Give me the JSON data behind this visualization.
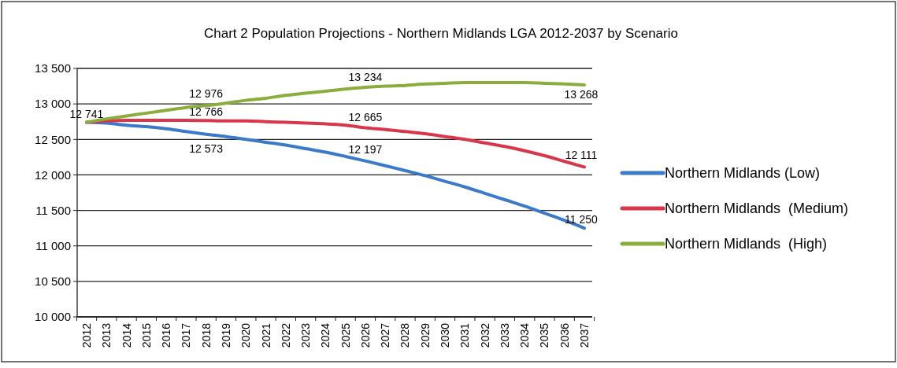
{
  "chart_data": {
    "type": "line",
    "title": "Chart 2 Population Projections - Northern Midlands LGA  2012-2037 by Scenario",
    "categories": [
      "2012",
      "2013",
      "2014",
      "2015",
      "2016",
      "2017",
      "2018",
      "2019",
      "2020",
      "2021",
      "2022",
      "2023",
      "2024",
      "2025",
      "2026",
      "2027",
      "2028",
      "2029",
      "2030",
      "2031",
      "2032",
      "2033",
      "2034",
      "2035",
      "2036",
      "2037"
    ],
    "series": [
      {
        "name": "Northern Midlands (Low)",
        "color": "#3a7ac8",
        "values": [
          12741,
          12730,
          12700,
          12680,
          12650,
          12610,
          12573,
          12540,
          12500,
          12460,
          12420,
          12370,
          12320,
          12260,
          12197,
          12130,
          12060,
          11990,
          11910,
          11830,
          11740,
          11650,
          11560,
          11460,
          11360,
          11250
        ],
        "value_labels": [
          null,
          null,
          null,
          null,
          null,
          null,
          "12 573",
          null,
          null,
          null,
          null,
          null,
          null,
          null,
          "12 197",
          null,
          null,
          null,
          null,
          null,
          null,
          null,
          null,
          null,
          null,
          "11 250"
        ]
      },
      {
        "name": "Northern Midlands  (Medium)",
        "color": "#d9364a",
        "values": [
          12741,
          12760,
          12770,
          12770,
          12770,
          12770,
          12766,
          12760,
          12760,
          12750,
          12740,
          12730,
          12720,
          12700,
          12665,
          12640,
          12610,
          12580,
          12540,
          12500,
          12450,
          12400,
          12340,
          12270,
          12190,
          12111
        ],
        "value_labels": [
          null,
          null,
          null,
          null,
          null,
          null,
          "12 766",
          null,
          null,
          null,
          null,
          null,
          null,
          null,
          "12 665",
          null,
          null,
          null,
          null,
          null,
          null,
          null,
          null,
          null,
          null,
          "12 111"
        ]
      },
      {
        "name": "Northern Midlands  (High)",
        "color": "#8aad3c",
        "values": [
          12741,
          12790,
          12830,
          12870,
          12910,
          12950,
          12976,
          13010,
          13050,
          13080,
          13120,
          13150,
          13180,
          13210,
          13234,
          13250,
          13260,
          13280,
          13290,
          13300,
          13300,
          13300,
          13300,
          13290,
          13280,
          13268
        ],
        "value_labels": [
          "12 741",
          null,
          null,
          null,
          null,
          null,
          "12 976",
          null,
          null,
          null,
          null,
          null,
          null,
          null,
          "13 234",
          null,
          null,
          null,
          null,
          null,
          null,
          null,
          null,
          null,
          null,
          "13 268"
        ]
      }
    ],
    "ylim": [
      10000,
      13500
    ],
    "yticks": [
      {
        "value": 10000,
        "label": "10 000"
      },
      {
        "value": 10500,
        "label": "10 500"
      },
      {
        "value": 11000,
        "label": "11 000"
      },
      {
        "value": 11500,
        "label": "11 500"
      },
      {
        "value": 12000,
        "label": "12 000"
      },
      {
        "value": 12500,
        "label": "12 500"
      },
      {
        "value": 13000,
        "label": "13 000"
      },
      {
        "value": 13500,
        "label": "13 500"
      }
    ],
    "grid": "y",
    "legend": "right",
    "marker": "none"
  }
}
